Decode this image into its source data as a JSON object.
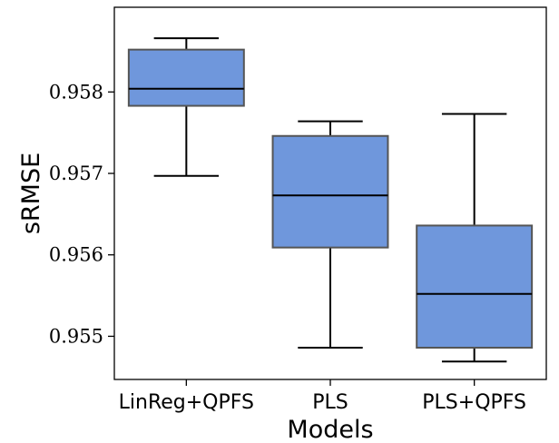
{
  "chart_data": {
    "type": "box",
    "xlabel": "Models",
    "ylabel": "sRMSE",
    "ylim": [
      0.95447,
      0.95904
    ],
    "yticks": [
      0.955,
      0.956,
      0.957,
      0.958
    ],
    "ytick_labels": [
      "0.955",
      "0.956",
      "0.957",
      "0.958"
    ],
    "categories": [
      "LinReg+QPFS",
      "PLS",
      "PLS+QPFS"
    ],
    "boxes": [
      {
        "category": "LinReg+QPFS",
        "whisker_low": 0.95697,
        "q1": 0.95783,
        "median": 0.95804,
        "q3": 0.95852,
        "whisker_high": 0.95866
      },
      {
        "category": "PLS",
        "whisker_low": 0.95486,
        "q1": 0.95609,
        "median": 0.95673,
        "q3": 0.95746,
        "whisker_high": 0.95764
      },
      {
        "category": "PLS+QPFS",
        "whisker_low": 0.95469,
        "q1": 0.95486,
        "median": 0.95552,
        "q3": 0.95636,
        "whisker_high": 0.95773
      }
    ],
    "box_color": "#6f97dc",
    "box_edge_color": "#555555",
    "grid": false,
    "legend": "none"
  }
}
